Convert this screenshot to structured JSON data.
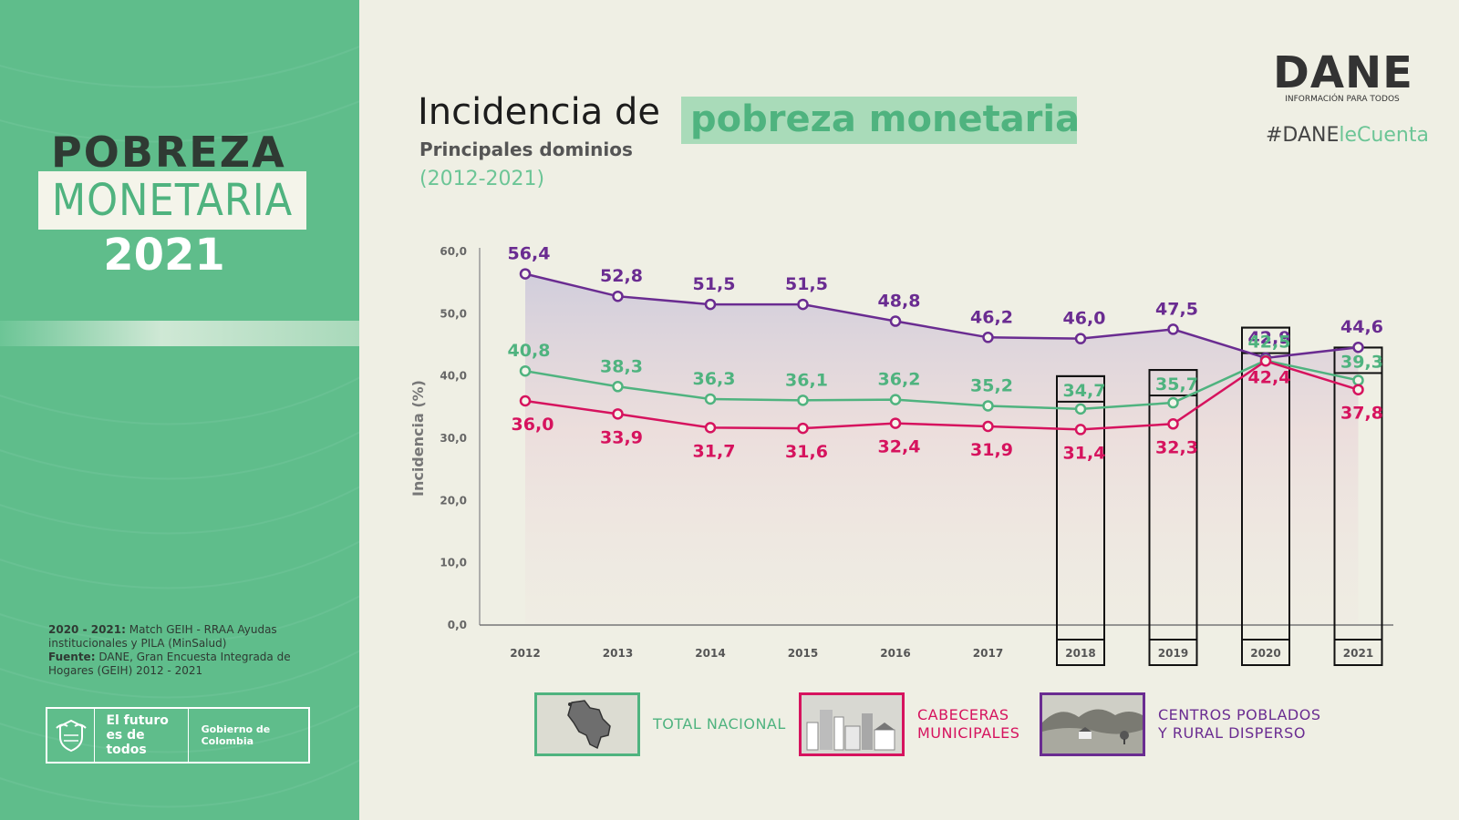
{
  "left_panel": {
    "title_line1": "POBREZA",
    "title_line2": "MONETARIA",
    "year": "2021",
    "note_label": "2020 - 2021:",
    "note_text": "Match GEIH - RRAA Ayudas institucionales y PILA (MinSalud)",
    "source_label": "Fuente:",
    "source_text": "DANE, Gran Encuesta Integrada de Hogares (GEIH) 2012 - 2021",
    "slogan": "El futuro es de todos",
    "gov": "Gobierno de Colombia"
  },
  "header": {
    "title_plain": "Incidencia de",
    "title_highlight": "pobreza monetaria",
    "subtitle": "Principales dominios",
    "period": "(2012-2021)"
  },
  "brand": {
    "logo": "DANE",
    "tagline": "INFORMACIÓN PARA TODOS",
    "hashtag_a": "#DANE",
    "hashtag_b": "leCuenta"
  },
  "chart_data": {
    "type": "line",
    "ylabel": "Incidencia (%)",
    "ylim": [
      0,
      60
    ],
    "yticks": [
      "0,0",
      "10,0",
      "20,0",
      "30,0",
      "40,0",
      "50,0",
      "60,0"
    ],
    "categories": [
      "2012",
      "2013",
      "2014",
      "2015",
      "2016",
      "2017",
      "2018",
      "2019",
      "2020",
      "2021"
    ],
    "boxed_categories": [
      "2018",
      "2019",
      "2020",
      "2021"
    ],
    "series": [
      {
        "name": "Centros poblados y rural disperso",
        "color": "#6a2c91",
        "values": [
          56.4,
          52.8,
          51.5,
          51.5,
          48.8,
          46.2,
          46.0,
          47.5,
          42.9,
          44.6
        ],
        "labels": [
          "56,4",
          "52,8",
          "51,5",
          "51,5",
          "48,8",
          "46,2",
          "46,0",
          "47,5",
          "42,9",
          "44,6"
        ]
      },
      {
        "name": "Total nacional",
        "color": "#4fb37f",
        "values": [
          40.8,
          38.3,
          36.3,
          36.1,
          36.2,
          35.2,
          34.7,
          35.7,
          42.5,
          39.3
        ],
        "labels": [
          "40,8",
          "38,3",
          "36,3",
          "36,1",
          "36,2",
          "35,2",
          "34,7",
          "35,7",
          "42,5",
          "39,3"
        ]
      },
      {
        "name": "Cabeceras municipales",
        "color": "#d6135e",
        "values": [
          36.0,
          33.9,
          31.7,
          31.6,
          32.4,
          31.9,
          31.4,
          32.3,
          42.4,
          37.8
        ],
        "labels": [
          "36,0",
          "33,9",
          "31,7",
          "31,6",
          "32,4",
          "31,9",
          "31,4",
          "32,3",
          "42,4",
          "37,8"
        ]
      }
    ]
  },
  "legend": [
    {
      "label_line1": "TOTAL NACIONAL",
      "label_line2": "",
      "color": "#4fb37f",
      "icon": "colombia-map-icon"
    },
    {
      "label_line1": "CABECERAS",
      "label_line2": "MUNICIPALES",
      "color": "#d6135e",
      "icon": "city-buildings-icon"
    },
    {
      "label_line1": "CENTROS POBLADOS",
      "label_line2": "Y RURAL DISPERSO",
      "color": "#6a2c91",
      "icon": "rural-landscape-icon"
    }
  ]
}
